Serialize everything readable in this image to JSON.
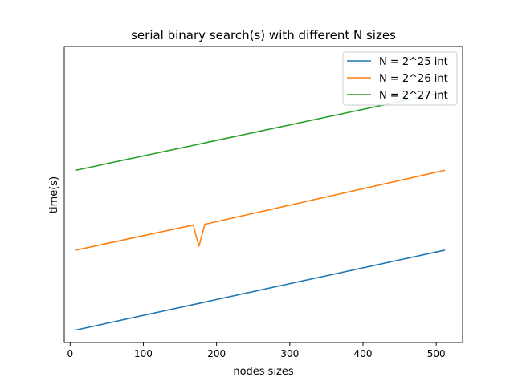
{
  "chart_data": {
    "type": "line",
    "title": "serial binary search(s) with different N sizes",
    "xlabel": "nodes sizes",
    "ylabel": "time(s)",
    "xlim": [
      -8,
      536
    ],
    "ylim": [
      -0.4,
      18.5
    ],
    "xticks": [
      0,
      100,
      200,
      300,
      400,
      500
    ],
    "xtick_labels": [
      "0",
      "100",
      "200",
      "300",
      "400",
      "500"
    ],
    "yticks_shown": false,
    "grid": false,
    "legend": "top-right",
    "series": [
      {
        "name": "N = 2^25 int",
        "color": "#1f77b4",
        "x": [
          8,
          512
        ],
        "y": [
          0.4,
          5.5
        ]
      },
      {
        "name": "N = 2^26 int",
        "color": "#ff7f0e",
        "x": [
          8,
          168,
          176,
          184,
          512
        ],
        "y": [
          5.5,
          7.1,
          5.75,
          7.15,
          10.6
        ]
      },
      {
        "name": "N = 2^27 int",
        "color": "#2ca02c",
        "x": [
          8,
          512
        ],
        "y": [
          10.6,
          15.6
        ]
      }
    ]
  }
}
